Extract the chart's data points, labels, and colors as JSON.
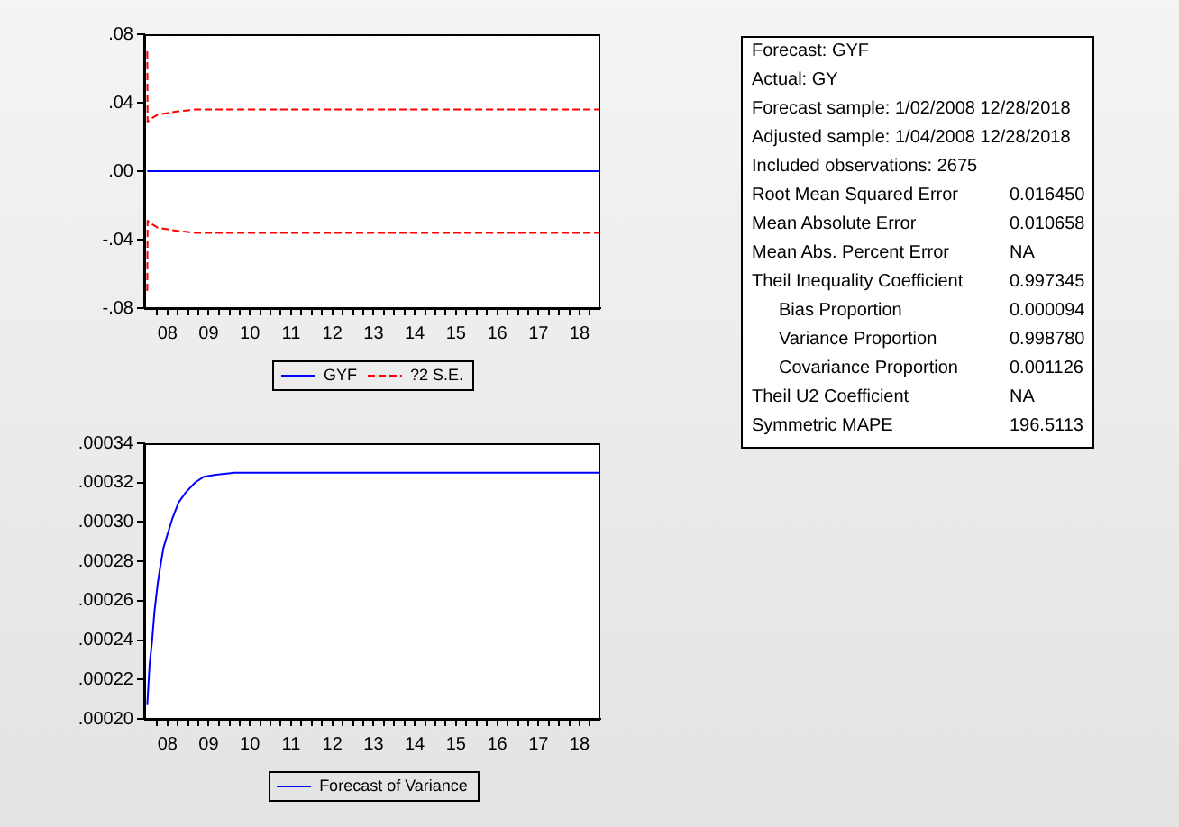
{
  "chart_data": [
    {
      "type": "line",
      "marker": "none",
      "line_style": "solid",
      "legend": "bottom",
      "series": [
        {
          "name": "GYF",
          "color": "#0000ff",
          "x": [
            "2008-01-04",
            "2018-12-28"
          ],
          "values": [
            0,
            0
          ]
        },
        {
          "name": "?2 S.E.",
          "color": "#ff0000",
          "line_style": "dashed",
          "x": [
            "2008-01-04",
            "2008-01-07",
            "2008-02-15",
            "2008-04-04",
            "2008-07-03",
            "2008-10-08",
            "2009-03-02",
            "2018-12-28"
          ],
          "values": [
            0.07,
            0.029,
            0.031,
            0.033,
            0.034,
            0.035,
            0.036,
            0.036
          ]
        },
        {
          "color": "#ff0000",
          "line_style": "dashed",
          "x": [
            "2008-01-04",
            "2008-01-07",
            "2008-02-15",
            "2008-04-04",
            "2008-07-03",
            "2008-10-08",
            "2009-03-02",
            "2018-12-28"
          ],
          "values": [
            -0.07,
            -0.029,
            -0.031,
            -0.033,
            -0.034,
            -0.035,
            -0.036,
            -0.036
          ]
        }
      ],
      "xlim": [
        "2007-12-08",
        "2019-01-01"
      ],
      "xticks": [
        {
          "value": "2008-04-01",
          "label": null
        },
        {
          "value": "2008-07-01",
          "label": "08"
        },
        {
          "value": "2008-10-01",
          "label": null
        },
        {
          "value": "2009-01-01",
          "label": null
        },
        {
          "value": "2009-04-01",
          "label": null
        },
        {
          "value": "2009-07-01",
          "label": "09"
        },
        {
          "value": "2009-10-01",
          "label": null
        },
        {
          "value": "2010-01-01",
          "label": null
        },
        {
          "value": "2010-04-01",
          "label": null
        },
        {
          "value": "2010-07-01",
          "label": "10"
        },
        {
          "value": "2010-10-01",
          "label": null
        },
        {
          "value": "2011-01-01",
          "label": null
        },
        {
          "value": "2011-04-01",
          "label": null
        },
        {
          "value": "2011-07-01",
          "label": "11"
        },
        {
          "value": "2011-10-01",
          "label": null
        },
        {
          "value": "2012-01-01",
          "label": null
        },
        {
          "value": "2012-04-01",
          "label": null
        },
        {
          "value": "2012-07-01",
          "label": "12"
        },
        {
          "value": "2012-10-01",
          "label": null
        },
        {
          "value": "2013-01-01",
          "label": null
        },
        {
          "value": "2013-04-01",
          "label": null
        },
        {
          "value": "2013-07-01",
          "label": "13"
        },
        {
          "value": "2013-10-01",
          "label": null
        },
        {
          "value": "2014-01-01",
          "label": null
        },
        {
          "value": "2014-04-01",
          "label": null
        },
        {
          "value": "2014-07-01",
          "label": "14"
        },
        {
          "value": "2014-10-01",
          "label": null
        },
        {
          "value": "2015-01-01",
          "label": null
        },
        {
          "value": "2015-04-01",
          "label": null
        },
        {
          "value": "2015-07-01",
          "label": "15"
        },
        {
          "value": "2015-10-01",
          "label": null
        },
        {
          "value": "2016-01-01",
          "label": null
        },
        {
          "value": "2016-04-01",
          "label": null
        },
        {
          "value": "2016-07-01",
          "label": "16"
        },
        {
          "value": "2016-10-01",
          "label": null
        },
        {
          "value": "2017-01-01",
          "label": null
        },
        {
          "value": "2017-04-01",
          "label": null
        },
        {
          "value": "2017-07-01",
          "label": "17"
        },
        {
          "value": "2017-10-01",
          "label": null
        },
        {
          "value": "2018-01-01",
          "label": null
        },
        {
          "value": "2018-04-01",
          "label": null
        },
        {
          "value": "2018-07-01",
          "label": "18"
        },
        {
          "value": "2018-10-01",
          "label": null
        }
      ],
      "ylim": [
        -0.08,
        0.08
      ],
      "yticks": [
        {
          "value": -0.08,
          "label": "-.08"
        },
        {
          "value": -0.04,
          "label": "-.04"
        },
        {
          "value": 0,
          "label": ".00"
        },
        {
          "value": 0.04,
          "label": ".04"
        },
        {
          "value": 0.08,
          "label": ".08"
        }
      ]
    },
    {
      "type": "line",
      "marker": "none",
      "line_style": "solid",
      "legend": "bottom",
      "series": [
        {
          "name": "Forecast of Variance",
          "color": "#0000ff",
          "x": [
            "2008-01-04",
            "2008-01-25",
            "2008-02-15",
            "2008-03-07",
            "2008-04-04",
            "2008-04-30",
            "2008-05-27",
            "2008-07-03",
            "2008-08-15",
            "2008-10-08",
            "2008-12-10",
            "2009-03-02",
            "2009-05-19",
            "2009-09-03",
            "2010-02-10",
            "2018-12-28"
          ],
          "values": [
            0.000207,
            0.000228,
            0.000239,
            0.000254,
            0.000268,
            0.000278,
            0.000287,
            0.000294,
            0.000302,
            0.00031,
            0.000315,
            0.00032,
            0.000323,
            0.000324,
            0.000325,
            0.000325
          ]
        }
      ],
      "xlim": [
        "2007-12-08",
        "2019-01-01"
      ],
      "xticks": [
        {
          "value": "2008-04-01",
          "label": null
        },
        {
          "value": "2008-07-01",
          "label": "08"
        },
        {
          "value": "2008-10-01",
          "label": null
        },
        {
          "value": "2009-01-01",
          "label": null
        },
        {
          "value": "2009-04-01",
          "label": null
        },
        {
          "value": "2009-07-01",
          "label": "09"
        },
        {
          "value": "2009-10-01",
          "label": null
        },
        {
          "value": "2010-01-01",
          "label": null
        },
        {
          "value": "2010-04-01",
          "label": null
        },
        {
          "value": "2010-07-01",
          "label": "10"
        },
        {
          "value": "2010-10-01",
          "label": null
        },
        {
          "value": "2011-01-01",
          "label": null
        },
        {
          "value": "2011-04-01",
          "label": null
        },
        {
          "value": "2011-07-01",
          "label": "11"
        },
        {
          "value": "2011-10-01",
          "label": null
        },
        {
          "value": "2012-01-01",
          "label": null
        },
        {
          "value": "2012-04-01",
          "label": null
        },
        {
          "value": "2012-07-01",
          "label": "12"
        },
        {
          "value": "2012-10-01",
          "label": null
        },
        {
          "value": "2013-01-01",
          "label": null
        },
        {
          "value": "2013-04-01",
          "label": null
        },
        {
          "value": "2013-07-01",
          "label": "13"
        },
        {
          "value": "2013-10-01",
          "label": null
        },
        {
          "value": "2014-01-01",
          "label": null
        },
        {
          "value": "2014-04-01",
          "label": null
        },
        {
          "value": "2014-07-01",
          "label": "14"
        },
        {
          "value": "2014-10-01",
          "label": null
        },
        {
          "value": "2015-01-01",
          "label": null
        },
        {
          "value": "2015-04-01",
          "label": null
        },
        {
          "value": "2015-07-01",
          "label": "15"
        },
        {
          "value": "2015-10-01",
          "label": null
        },
        {
          "value": "2016-01-01",
          "label": null
        },
        {
          "value": "2016-04-01",
          "label": null
        },
        {
          "value": "2016-07-01",
          "label": "16"
        },
        {
          "value": "2016-10-01",
          "label": null
        },
        {
          "value": "2017-01-01",
          "label": null
        },
        {
          "value": "2017-04-01",
          "label": null
        },
        {
          "value": "2017-07-01",
          "label": "17"
        },
        {
          "value": "2017-10-01",
          "label": null
        },
        {
          "value": "2018-01-01",
          "label": null
        },
        {
          "value": "2018-04-01",
          "label": null
        },
        {
          "value": "2018-07-01",
          "label": "18"
        },
        {
          "value": "2018-10-01",
          "label": null
        }
      ],
      "ylim": [
        0.0002,
        0.00034
      ],
      "yticks": [
        {
          "value": 0.0002,
          "label": ".00020"
        },
        {
          "value": 0.00022,
          "label": ".00022"
        },
        {
          "value": 0.00024,
          "label": ".00024"
        },
        {
          "value": 0.00026,
          "label": ".00026"
        },
        {
          "value": 0.00028,
          "label": ".00028"
        },
        {
          "value": 0.0003,
          "label": ".00030"
        },
        {
          "value": 0.00032,
          "label": ".00032"
        },
        {
          "value": 0.00034,
          "label": ".00034"
        }
      ]
    },
    {
      "type": "other",
      "categories": [
        "Forecast: GYF",
        "Actual: GY",
        "Forecast sample: 1/02/2008 12/28/2018",
        "Adjusted sample: 1/04/2008 12/28/2018",
        "Included observations: 2675",
        "Root Mean Squared Error",
        "Mean Absolute Error",
        "Mean Abs. Percent Error",
        "Theil Inequality Coefficient",
        "    Bias Proportion",
        "    Variance Proportion",
        "    Covariance Proportion",
        "Theil U2 Coefficient",
        "Symmetric MAPE"
      ],
      "value_labels": [
        null,
        null,
        null,
        null,
        null,
        "0.016450",
        "0.010658",
        "NA",
        "0.997345",
        "0.000094",
        "0.998780",
        "0.001126",
        "NA",
        "196.5113"
      ]
    }
  ]
}
